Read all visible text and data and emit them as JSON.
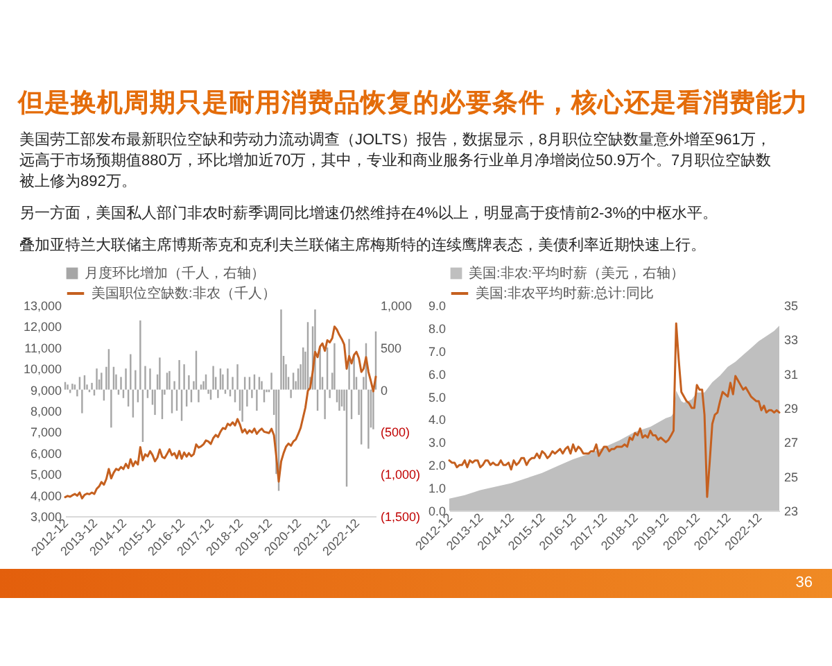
{
  "chart_data": [
    {
      "type": "other",
      "title": "但是换机周期只是耐用消费品恢复的必要条件，核心还是看消费能力",
      "annotations": [
        "美国劳工部发布最新职位空缺和劳动力流动调查（JOLTS）报告，数据显示，8月职位空缺数量意外增至961万，远高于市场预期值880万，环比增加近70万，其中，专业和商业服务行业单月净增岗位50.9万个。7月职位空缺数被上修为892万。",
        "另一方面，美国私人部门非农时薪季调同比增速仍然维持在4%以上，明显高于疫情前2-3%的中枢水平。",
        "叠加亚特兰大联储主席博斯蒂克和克利夫兰联储主席梅斯特的连续鹰牌表态，美债利率近期快速上行。",
        "36"
      ]
    },
    {
      "type": "line",
      "legend": "top",
      "x": [
        "2012-12",
        "2013-01",
        "2013-02",
        "2013-03",
        "2013-04",
        "2013-05",
        "2013-06",
        "2013-07",
        "2013-08",
        "2013-09",
        "2013-10",
        "2013-11",
        "2013-12",
        "2014-01",
        "2014-02",
        "2014-03",
        "2014-04",
        "2014-05",
        "2014-06",
        "2014-07",
        "2014-08",
        "2014-09",
        "2014-10",
        "2014-11",
        "2014-12",
        "2015-01",
        "2015-02",
        "2015-03",
        "2015-04",
        "2015-05",
        "2015-06",
        "2015-07",
        "2015-08",
        "2015-09",
        "2015-10",
        "2015-11",
        "2015-12",
        "2016-01",
        "2016-02",
        "2016-03",
        "2016-04",
        "2016-05",
        "2016-06",
        "2016-07",
        "2016-08",
        "2016-09",
        "2016-10",
        "2016-11",
        "2016-12",
        "2017-01",
        "2017-02",
        "2017-03",
        "2017-04",
        "2017-05",
        "2017-06",
        "2017-07",
        "2017-08",
        "2017-09",
        "2017-10",
        "2017-11",
        "2017-12",
        "2018-01",
        "2018-02",
        "2018-03",
        "2018-04",
        "2018-05",
        "2018-06",
        "2018-07",
        "2018-08",
        "2018-09",
        "2018-10",
        "2018-11",
        "2018-12",
        "2019-01",
        "2019-02",
        "2019-03",
        "2019-04",
        "2019-05",
        "2019-06",
        "2019-07",
        "2019-08",
        "2019-09",
        "2019-10",
        "2019-11",
        "2019-12",
        "2020-01",
        "2020-02",
        "2020-03",
        "2020-04",
        "2020-05",
        "2020-06",
        "2020-07",
        "2020-08",
        "2020-09",
        "2020-10",
        "2020-11",
        "2020-12",
        "2021-01",
        "2021-02",
        "2021-03",
        "2021-04",
        "2021-05",
        "2021-06",
        "2021-07",
        "2021-08",
        "2021-09",
        "2021-10",
        "2021-11",
        "2021-12",
        "2022-01",
        "2022-02",
        "2022-03",
        "2022-04",
        "2022-05",
        "2022-06",
        "2022-07",
        "2022-08",
        "2022-09",
        "2022-10",
        "2022-11",
        "2022-12",
        "2023-01",
        "2023-02",
        "2023-03",
        "2023-04",
        "2023-05",
        "2023-06",
        "2023-07",
        "2023-08"
      ],
      "series": [
        {
          "name": "月度环比增加（千人，右轴）",
          "type": "bar",
          "axis": "y2",
          "color": "#a6a6a6",
          "values": [
            90,
            60,
            -40,
            70,
            60,
            -80,
            150,
            -280,
            170,
            60,
            -30,
            80,
            -70,
            250,
            120,
            200,
            -130,
            270,
            480,
            -450,
            270,
            180,
            -60,
            150,
            -100,
            250,
            -200,
            420,
            -330,
            230,
            -150,
            820,
            -620,
            280,
            -100,
            250,
            -180,
            -300,
            180,
            380,
            -350,
            -60,
            200,
            220,
            -280,
            100,
            -250,
            350,
            -370,
            300,
            -200,
            170,
            -150,
            100,
            460,
            -150,
            60,
            100,
            180,
            -50,
            -120,
            280,
            150,
            -100,
            250,
            180,
            -50,
            250,
            -80,
            150,
            -150,
            300,
            -250,
            -380,
            150,
            -200,
            150,
            -100,
            180,
            -250,
            150,
            100,
            -150,
            -30,
            -30,
            200,
            -300,
            -1000,
            -1200,
            950,
            400,
            300,
            150,
            -100,
            200,
            100,
            250,
            300,
            500,
            450,
            800,
            150,
            750,
            950,
            -250,
            500,
            150,
            -350,
            500,
            -100,
            200,
            550,
            -150,
            -250,
            -200,
            -250,
            -1150,
            600,
            -350,
            400,
            150,
            -300,
            -650,
            150,
            550,
            -700,
            -450,
            -470,
            690
          ]
        },
        {
          "name": "美国职位空缺数:非农（千人）",
          "type": "line",
          "color": "#c5601f",
          "values": [
            3900,
            3960,
            3920,
            3990,
            4050,
            3970,
            4120,
            3840,
            4010,
            4070,
            4040,
            4120,
            4050,
            4300,
            4420,
            4620,
            4490,
            4760,
            5240,
            4790,
            5060,
            5240,
            5180,
            5330,
            5230,
            5480,
            5280,
            5700,
            5370,
            5600,
            5450,
            6270,
            5650,
            5930,
            5830,
            6080,
            5900,
            5600,
            5780,
            6160,
            5810,
            5750,
            5950,
            6170,
            5890,
            5990,
            5740,
            6090,
            5720,
            6020,
            5820,
            5990,
            5840,
            5940,
            6400,
            6250,
            6310,
            6410,
            6590,
            6540,
            6420,
            6700,
            6850,
            6750,
            7000,
            7180,
            7130,
            7380,
            7300,
            7450,
            7300,
            7600,
            7350,
            6970,
            7120,
            6920,
            7070,
            6970,
            7150,
            6900,
            7050,
            7150,
            7000,
            6970,
            6940,
            7140,
            6840,
            5840,
            4640,
            5590,
            5990,
            6290,
            6440,
            6340,
            6540,
            6640,
            6890,
            7190,
            7690,
            8140,
            8940,
            9090,
            9840,
            10790,
            10540,
            11040,
            11190,
            10840,
            11340,
            11240,
            11440,
            11990,
            11840,
            11590,
            11390,
            11140,
            9990,
            10590,
            10240,
            10640,
            10790,
            10490,
            9840,
            9990,
            10540,
            9840,
            9390,
            8920,
            9610
          ]
        }
      ],
      "xlim": [
        "2012-12",
        "2023-08"
      ],
      "xticks": [
        "2012-12",
        "2013-12",
        "2014-12",
        "2015-12",
        "2016-12",
        "2017-12",
        "2018-12",
        "2019-12",
        "2020-12",
        "2021-12",
        "2022-12"
      ],
      "ylim": [
        3000,
        13000
      ],
      "yticks": [
        {
          "value": 3000,
          "label": "3,000"
        },
        {
          "value": 4000,
          "label": "4,000"
        },
        {
          "value": 5000,
          "label": "5,000"
        },
        {
          "value": 6000,
          "label": "6,000"
        },
        {
          "value": 7000,
          "label": "7,000"
        },
        {
          "value": 8000,
          "label": "8,000"
        },
        {
          "value": 9000,
          "label": "9,000"
        },
        {
          "value": 10000,
          "label": "10,000"
        },
        {
          "value": 11000,
          "label": "11,000"
        },
        {
          "value": 12000,
          "label": "12,000"
        },
        {
          "value": 13000,
          "label": "13,000"
        }
      ],
      "y2lim": [
        -1500,
        1000
      ],
      "y2ticks": [
        {
          "value": -1500,
          "label": "(1,500)"
        },
        {
          "value": -1000,
          "label": "(1,000)"
        },
        {
          "value": -500,
          "label": "(500)"
        },
        {
          "value": 0,
          "label": "0"
        },
        {
          "value": 500,
          "label": "500"
        },
        {
          "value": 1000,
          "label": "1,000"
        }
      ]
    },
    {
      "type": "line",
      "legend": "top",
      "x": [
        "2012-12",
        "2013-01",
        "2013-02",
        "2013-03",
        "2013-04",
        "2013-05",
        "2013-06",
        "2013-07",
        "2013-08",
        "2013-09",
        "2013-10",
        "2013-11",
        "2013-12",
        "2014-01",
        "2014-02",
        "2014-03",
        "2014-04",
        "2014-05",
        "2014-06",
        "2014-07",
        "2014-08",
        "2014-09",
        "2014-10",
        "2014-11",
        "2014-12",
        "2015-01",
        "2015-02",
        "2015-03",
        "2015-04",
        "2015-05",
        "2015-06",
        "2015-07",
        "2015-08",
        "2015-09",
        "2015-10",
        "2015-11",
        "2015-12",
        "2016-01",
        "2016-02",
        "2016-03",
        "2016-04",
        "2016-05",
        "2016-06",
        "2016-07",
        "2016-08",
        "2016-09",
        "2016-10",
        "2016-11",
        "2016-12",
        "2017-01",
        "2017-02",
        "2017-03",
        "2017-04",
        "2017-05",
        "2017-06",
        "2017-07",
        "2017-08",
        "2017-09",
        "2017-10",
        "2017-11",
        "2017-12",
        "2018-01",
        "2018-02",
        "2018-03",
        "2018-04",
        "2018-05",
        "2018-06",
        "2018-07",
        "2018-08",
        "2018-09",
        "2018-10",
        "2018-11",
        "2018-12",
        "2019-01",
        "2019-02",
        "2019-03",
        "2019-04",
        "2019-05",
        "2019-06",
        "2019-07",
        "2019-08",
        "2019-09",
        "2019-10",
        "2019-11",
        "2019-12",
        "2020-01",
        "2020-02",
        "2020-03",
        "2020-04",
        "2020-05",
        "2020-06",
        "2020-07",
        "2020-08",
        "2020-09",
        "2020-10",
        "2020-11",
        "2020-12",
        "2021-01",
        "2021-02",
        "2021-03",
        "2021-04",
        "2021-05",
        "2021-06",
        "2021-07",
        "2021-08",
        "2021-09",
        "2021-10",
        "2021-11",
        "2021-12",
        "2022-01",
        "2022-02",
        "2022-03",
        "2022-04",
        "2022-05",
        "2022-06",
        "2022-07",
        "2022-08",
        "2022-09",
        "2022-10",
        "2022-11",
        "2022-12",
        "2023-01",
        "2023-02",
        "2023-03",
        "2023-04",
        "2023-05",
        "2023-06",
        "2023-07",
        "2023-08"
      ],
      "series": [
        {
          "name": "美国:非农:平均时薪（美元，右轴）",
          "type": "area",
          "axis": "y2",
          "color": "#bfbfbf",
          "x": [
            "2012-12",
            "2013-06",
            "2013-12",
            "2014-06",
            "2014-12",
            "2015-06",
            "2015-12",
            "2016-06",
            "2016-12",
            "2017-06",
            "2017-12",
            "2018-06",
            "2018-12",
            "2019-06",
            "2019-12",
            "2020-02",
            "2020-03",
            "2020-04",
            "2020-05",
            "2020-06",
            "2020-07",
            "2020-10",
            "2020-12",
            "2021-03",
            "2021-06",
            "2021-09",
            "2021-12",
            "2022-03",
            "2022-06",
            "2022-09",
            "2022-12",
            "2023-03",
            "2023-06",
            "2023-08"
          ],
          "values": [
            23.7,
            23.9,
            24.2,
            24.4,
            24.6,
            24.9,
            25.2,
            25.6,
            26.0,
            26.3,
            26.7,
            27.1,
            27.6,
            27.9,
            28.4,
            28.5,
            28.7,
            30.0,
            29.7,
            29.4,
            29.3,
            29.5,
            29.9,
            29.9,
            30.5,
            30.9,
            31.4,
            31.7,
            32.1,
            32.5,
            32.9,
            33.2,
            33.5,
            33.8
          ]
        },
        {
          "name": "美国:非农平均时薪:总计:同比",
          "type": "line",
          "color": "#c5601f",
          "values": [
            2.2,
            2.1,
            2.1,
            1.9,
            2.0,
            2.0,
            2.2,
            1.9,
            2.2,
            2.1,
            2.2,
            2.2,
            1.9,
            2.0,
            2.2,
            2.2,
            2.0,
            2.1,
            2.0,
            2.0,
            2.2,
            2.0,
            2.0,
            2.1,
            1.8,
            2.2,
            2.0,
            2.1,
            2.3,
            2.3,
            2.0,
            2.2,
            2.3,
            2.3,
            2.5,
            2.3,
            2.6,
            2.5,
            2.3,
            2.4,
            2.6,
            2.5,
            2.6,
            2.7,
            2.5,
            2.7,
            2.8,
            2.5,
            2.9,
            2.6,
            2.8,
            2.7,
            2.5,
            2.5,
            2.5,
            2.6,
            2.6,
            2.9,
            2.4,
            2.6,
            2.8,
            2.8,
            2.6,
            2.7,
            2.7,
            2.8,
            2.8,
            2.8,
            2.9,
            2.8,
            3.2,
            3.1,
            3.4,
            3.3,
            3.6,
            3.2,
            3.3,
            3.2,
            3.5,
            3.3,
            3.3,
            3.1,
            3.2,
            3.1,
            3.0,
            3.1,
            3.3,
            3.5,
            8.2,
            6.6,
            5.2,
            5.0,
            4.8,
            4.7,
            4.5,
            4.5,
            5.5,
            5.3,
            5.3,
            4.2,
            0.6,
            2.1,
            3.8,
            4.2,
            4.3,
            4.8,
            5.2,
            5.1,
            5.0,
            5.6,
            5.1,
            5.9,
            5.7,
            5.5,
            5.3,
            5.4,
            5.2,
            5.0,
            4.9,
            4.8,
            4.8,
            4.4,
            4.6,
            4.3,
            4.4,
            4.4,
            4.3,
            4.4,
            4.3
          ]
        }
      ],
      "xlim": [
        "2012-12",
        "2023-08"
      ],
      "xticks": [
        "2012-12",
        "2013-12",
        "2014-12",
        "2015-12",
        "2016-12",
        "2017-12",
        "2018-12",
        "2019-12",
        "2020-12",
        "2021-12",
        "2022-12"
      ],
      "ylim": [
        0,
        9
      ],
      "yticks": [
        {
          "value": 0,
          "label": "0.0"
        },
        {
          "value": 1,
          "label": "1.0"
        },
        {
          "value": 2,
          "label": "2.0"
        },
        {
          "value": 3,
          "label": "3.0"
        },
        {
          "value": 4,
          "label": "4.0"
        },
        {
          "value": 5,
          "label": "5.0"
        },
        {
          "value": 6,
          "label": "6.0"
        },
        {
          "value": 7,
          "label": "7.0"
        },
        {
          "value": 8,
          "label": "8.0"
        },
        {
          "value": 9,
          "label": "9.0"
        }
      ],
      "y2lim": [
        23,
        35
      ],
      "y2ticks": [
        23,
        25,
        27,
        29,
        31,
        33,
        35
      ]
    }
  ]
}
